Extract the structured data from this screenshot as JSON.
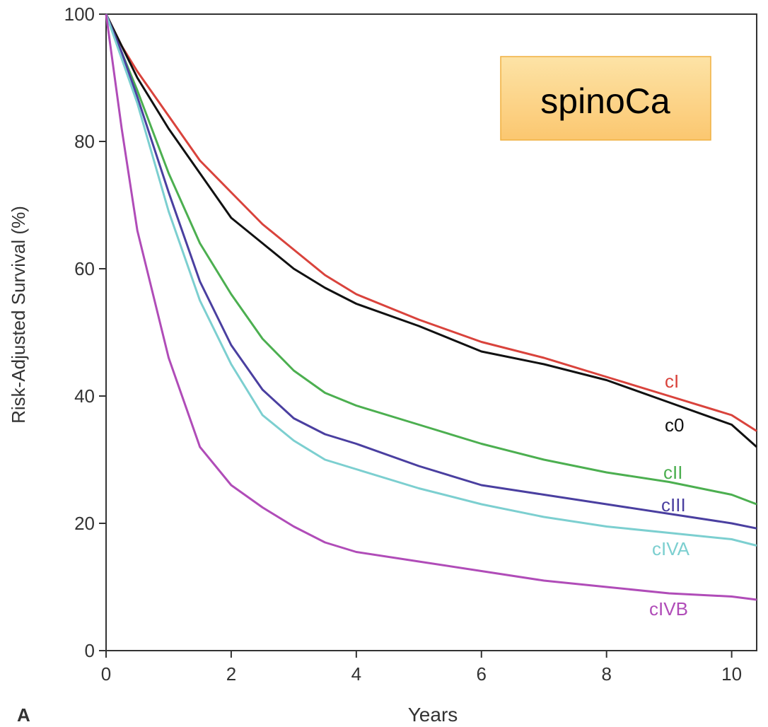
{
  "chart_data": {
    "type": "line",
    "panel_label": "A",
    "annotation": "spinoCa",
    "x_label": "Years",
    "y_label": "Risk-Adjusted Survival (%)",
    "xlim": [
      0,
      10.4
    ],
    "ylim": [
      0,
      100
    ],
    "xticks": [
      0,
      2,
      4,
      6,
      8,
      10
    ],
    "yticks": [
      0,
      20,
      40,
      60,
      80,
      100
    ],
    "x": [
      0,
      0.25,
      0.5,
      1,
      1.5,
      2,
      2.5,
      3,
      3.5,
      4,
      5,
      6,
      7,
      8,
      9,
      10,
      10.4
    ],
    "series": [
      {
        "name": "cI",
        "color": "#d9433c",
        "values": [
          100,
          95,
          91,
          84,
          77,
          72,
          67,
          63,
          59,
          56,
          52,
          48.5,
          46,
          43,
          40,
          37,
          34.5
        ]
      },
      {
        "name": "c0",
        "color": "#111111",
        "values": [
          100,
          95,
          90,
          82,
          75,
          68,
          64,
          60,
          57,
          54.5,
          51,
          47,
          45,
          42.5,
          39,
          35.5,
          32
        ]
      },
      {
        "name": "cII",
        "color": "#4caf50",
        "values": [
          100,
          94,
          88,
          75,
          64,
          56,
          49,
          44,
          40.5,
          38.5,
          35.5,
          32.5,
          30,
          28,
          26.5,
          24.5,
          23
        ]
      },
      {
        "name": "cIII",
        "color": "#4a3fa0",
        "values": [
          100,
          94,
          87,
          72,
          58,
          48,
          41,
          36.5,
          34,
          32.5,
          29,
          26,
          24.5,
          23,
          21.5,
          20,
          19.2
        ]
      },
      {
        "name": "cIVA",
        "color": "#7ccfd0",
        "values": [
          100,
          93,
          86,
          69,
          55,
          45,
          37,
          33,
          30,
          28.5,
          25.5,
          23,
          21,
          19.5,
          18.5,
          17.5,
          16.5
        ]
      },
      {
        "name": "cIVB",
        "color": "#b04cb8",
        "values": [
          100,
          82,
          66,
          46,
          32,
          26,
          22.5,
          19.5,
          17,
          15.5,
          14,
          12.5,
          11,
          10,
          9,
          8.5,
          8
        ]
      }
    ]
  }
}
